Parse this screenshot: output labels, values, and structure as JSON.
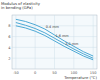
{
  "chart_data": {
    "type": "line",
    "y_label": "Modulus of elasticity in bending (GPa)",
    "x_label": "Temperature (°C)",
    "x": [
      -50,
      -25,
      0,
      25,
      50,
      75,
      100,
      125,
      150
    ],
    "series": [
      {
        "name": "0.4 mm",
        "color": "#3a9fd0",
        "values": [
          9.2,
          8.8,
          8.2,
          7.4,
          6.3,
          5.2,
          4.2,
          3.2,
          2.4
        ]
      },
      {
        "name": "1.6 mm",
        "color": "#3a9fd0",
        "values": [
          8.6,
          8.1,
          7.5,
          6.7,
          5.7,
          4.7,
          3.7,
          2.8,
          2.0
        ]
      },
      {
        "name": "3.2 mm",
        "color": "#3a9fd0",
        "values": [
          8.0,
          7.6,
          7.0,
          6.2,
          5.2,
          4.2,
          3.3,
          2.4,
          1.7
        ]
      }
    ],
    "xlim": [
      -60,
      160
    ],
    "xticks": [
      -50,
      0,
      50,
      100,
      150
    ],
    "ylim": [
      0,
      10
    ],
    "yticks": [
      2,
      4,
      6,
      8
    ],
    "grid": true
  }
}
